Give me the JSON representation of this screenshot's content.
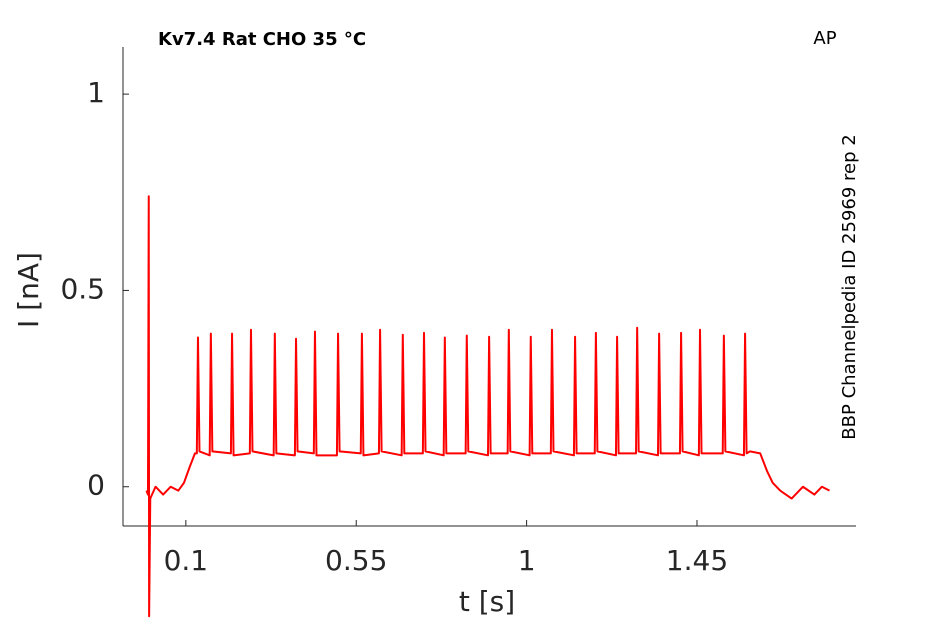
{
  "chart_data": {
    "type": "line",
    "title": "Kv7.4  Rat  CHO  35 °C",
    "annotations": [
      "AP",
      "BBP Channelpedia ID 25969 rep 2"
    ],
    "xlabel": "t [s]",
    "ylabel": "I [nA]",
    "xlim": [
      -0.066,
      1.87
    ],
    "ylim": [
      -0.1,
      1.12
    ],
    "xticks": [
      0.1,
      0.55,
      1,
      1.45
    ],
    "yticks": [
      0,
      0.5,
      1
    ],
    "grid": false,
    "color": "#ff0000",
    "x": [
      -0.004,
      0.0,
      0.002,
      0.003,
      0.006,
      0.02,
      0.04,
      0.06,
      0.08,
      0.095,
      0.11,
      0.124,
      0.129,
      0.132,
      0.136,
      0.163,
      0.166,
      0.17,
      0.219,
      0.222,
      0.226,
      0.269,
      0.272,
      0.276,
      0.332,
      0.335,
      0.339,
      0.388,
      0.391,
      0.395,
      0.438,
      0.441,
      0.445,
      0.499,
      0.502,
      0.506,
      0.562,
      0.565,
      0.569,
      0.61,
      0.613,
      0.617,
      0.67,
      0.673,
      0.677,
      0.726,
      0.729,
      0.733,
      0.781,
      0.784,
      0.788,
      0.839,
      0.842,
      0.846,
      0.898,
      0.901,
      0.905,
      0.95,
      0.953,
      0.957,
      1.008,
      1.011,
      1.015,
      1.064,
      1.067,
      1.071,
      1.125,
      1.128,
      1.132,
      1.18,
      1.183,
      1.187,
      1.236,
      1.239,
      1.243,
      1.289,
      1.292,
      1.296,
      1.347,
      1.35,
      1.354,
      1.405,
      1.408,
      1.412,
      1.455,
      1.458,
      1.462,
      1.518,
      1.521,
      1.525,
      1.574,
      1.577,
      1.581,
      1.59,
      1.617,
      1.635,
      1.65,
      1.67,
      1.7,
      1.73,
      1.76,
      1.78,
      1.8
    ],
    "values": [
      -0.01,
      -0.02,
      0.74,
      -0.33,
      -0.03,
      0.0,
      -0.02,
      0.0,
      -0.01,
      0.01,
      0.05,
      0.085,
      0.085,
      0.38,
      0.09,
      0.08,
      0.39,
      0.09,
      0.085,
      0.39,
      0.08,
      0.085,
      0.4,
      0.09,
      0.08,
      0.39,
      0.085,
      0.08,
      0.377,
      0.09,
      0.085,
      0.395,
      0.08,
      0.08,
      0.39,
      0.09,
      0.085,
      0.39,
      0.08,
      0.085,
      0.4,
      0.09,
      0.08,
      0.387,
      0.085,
      0.085,
      0.392,
      0.09,
      0.08,
      0.38,
      0.085,
      0.085,
      0.385,
      0.09,
      0.08,
      0.382,
      0.085,
      0.085,
      0.4,
      0.09,
      0.08,
      0.382,
      0.085,
      0.085,
      0.4,
      0.09,
      0.08,
      0.382,
      0.085,
      0.085,
      0.392,
      0.09,
      0.08,
      0.382,
      0.085,
      0.085,
      0.405,
      0.09,
      0.08,
      0.39,
      0.085,
      0.085,
      0.392,
      0.09,
      0.08,
      0.4,
      0.085,
      0.085,
      0.385,
      0.09,
      0.08,
      0.39,
      0.085,
      0.09,
      0.085,
      0.04,
      0.01,
      -0.01,
      -0.03,
      0.0,
      -0.02,
      0.0,
      -0.01
    ]
  }
}
